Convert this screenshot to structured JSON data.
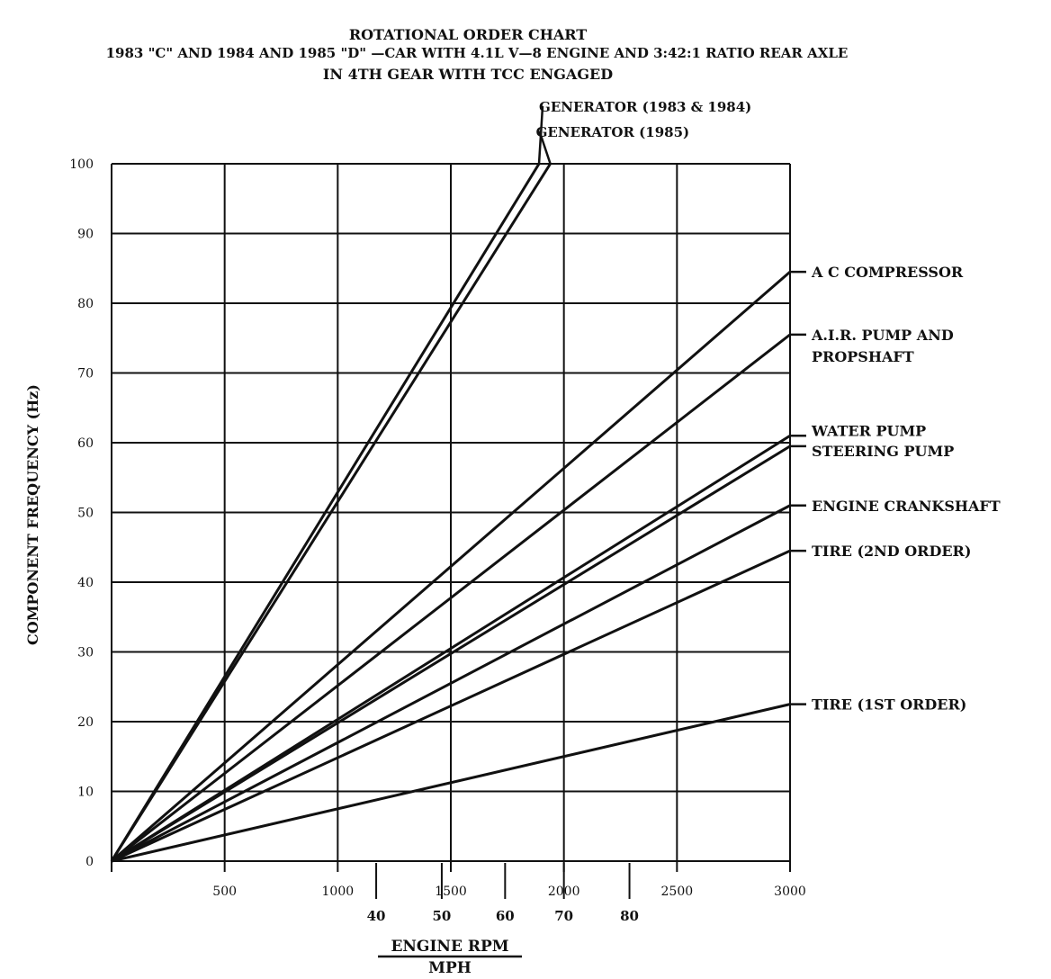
{
  "chart_data": {
    "type": "line",
    "title": [
      "ROTATIONAL ORDER CHART",
      "1983 \"C\" AND 1984 AND 1985 \"D\" —CAR WITH 4.1L V—8 ENGINE AND 3:42:1 RATIO REAR AXLE",
      "IN 4TH GEAR WITH TCC ENGAGED"
    ],
    "ylabel": "COMPONENT FREQUENCY (Hz)",
    "xlabel": "ENGINE RPM",
    "xlabel2": "MPH",
    "xlim": [
      0,
      3000
    ],
    "ylim": [
      0,
      100
    ],
    "grid": true,
    "x_ticks": [
      {
        "value": 500,
        "label": "500"
      },
      {
        "value": 1000,
        "label": "1000"
      },
      {
        "value": 1500,
        "label": "1500"
      },
      {
        "value": 2000,
        "label": "2000"
      },
      {
        "value": 2500,
        "label": "2500"
      },
      {
        "value": 3000,
        "label": "3000"
      }
    ],
    "y_ticks": [
      {
        "value": 0,
        "label": "0"
      },
      {
        "value": 10,
        "label": "10"
      },
      {
        "value": 20,
        "label": "20"
      },
      {
        "value": 30,
        "label": "30"
      },
      {
        "value": 40,
        "label": "40"
      },
      {
        "value": 50,
        "label": "50"
      },
      {
        "value": 60,
        "label": "60"
      },
      {
        "value": 70,
        "label": "70"
      },
      {
        "value": 80,
        "label": "80"
      },
      {
        "value": 90,
        "label": "90"
      },
      {
        "value": 100,
        "label": "100"
      }
    ],
    "mph_ticks": [
      {
        "rpm": 1170,
        "label": "40"
      },
      {
        "rpm": 1460,
        "label": "50"
      },
      {
        "rpm": 1740,
        "label": "60"
      },
      {
        "rpm": 2000,
        "label": "70"
      },
      {
        "rpm": 2290,
        "label": "80"
      }
    ],
    "series": [
      {
        "name": "GENERATOR (1983 & 1984)",
        "x": [
          0,
          1890
        ],
        "y": [
          0,
          100
        ],
        "label_lines": [
          "GENERATOR (1983 & 1984)"
        ]
      },
      {
        "name": "GENERATOR (1985)",
        "x": [
          0,
          1940
        ],
        "y": [
          0,
          100
        ],
        "label_lines": [
          "GENERATOR (1985)"
        ]
      },
      {
        "name": "A C COMPRESSOR",
        "x": [
          0,
          3000
        ],
        "y": [
          0,
          84.5
        ],
        "label_lines": [
          "A C COMPRESSOR"
        ]
      },
      {
        "name": "A.I.R. PUMP AND PROPSHAFT",
        "x": [
          0,
          3000
        ],
        "y": [
          0,
          75.5
        ],
        "label_lines": [
          "A.I.R. PUMP AND",
          "PROPSHAFT"
        ]
      },
      {
        "name": "WATER PUMP",
        "x": [
          0,
          3000
        ],
        "y": [
          0,
          61
        ],
        "label_lines": [
          "WATER PUMP"
        ]
      },
      {
        "name": "STEERING PUMP",
        "x": [
          0,
          3000
        ],
        "y": [
          0,
          59.5
        ],
        "label_lines": [
          "STEERING PUMP"
        ]
      },
      {
        "name": "ENGINE CRANKSHAFT",
        "x": [
          0,
          3000
        ],
        "y": [
          0,
          51
        ],
        "label_lines": [
          "ENGINE CRANKSHAFT"
        ]
      },
      {
        "name": "TIRE (2ND ORDER)",
        "x": [
          0,
          3000
        ],
        "y": [
          0,
          44.5
        ],
        "label_lines": [
          "TIRE (2ND ORDER)"
        ]
      },
      {
        "name": "TIRE (1ST ORDER)",
        "x": [
          0,
          3000
        ],
        "y": [
          0,
          22.5
        ],
        "label_lines": [
          "TIRE (1ST ORDER)"
        ]
      }
    ]
  }
}
